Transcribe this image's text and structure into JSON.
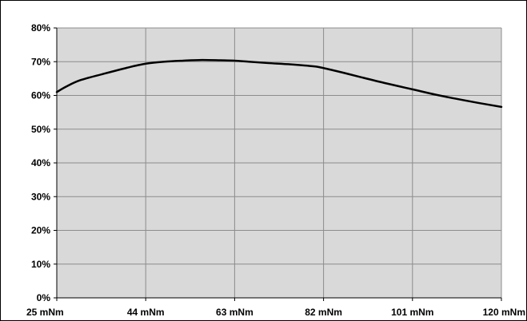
{
  "chart_data": {
    "type": "line",
    "title": "",
    "xlabel": "",
    "ylabel": "",
    "x_ticks": [
      "25 mNm",
      "44 mNm",
      "63 mNm",
      "82 mNm",
      "101 mNm",
      "120 mNm"
    ],
    "x_tick_values": [
      25,
      44,
      63,
      82,
      101,
      120
    ],
    "y_ticks": [
      "0%",
      "10%",
      "20%",
      "30%",
      "40%",
      "50%",
      "60%",
      "70%",
      "80%"
    ],
    "y_tick_values": [
      0,
      10,
      20,
      30,
      40,
      50,
      60,
      70,
      80
    ],
    "xlim": [
      25,
      120
    ],
    "ylim": [
      0,
      80
    ],
    "grid": true,
    "legend": "none",
    "colors": {
      "plot_background": "#d9d9d9",
      "grid": "#8c8c8c",
      "line": "#000000"
    },
    "series": [
      {
        "x": [
          25,
          27,
          30,
          35,
          40,
          44,
          48,
          52,
          56,
          60,
          63,
          66,
          70,
          75,
          80,
          82,
          86,
          90,
          95,
          101,
          106,
          110,
          115,
          120
        ],
        "values": [
          61.0,
          62.6,
          64.5,
          66.4,
          68.2,
          69.4,
          70.0,
          70.3,
          70.5,
          70.4,
          70.3,
          70.0,
          69.6,
          69.2,
          68.6,
          68.1,
          66.8,
          65.4,
          63.7,
          61.8,
          60.2,
          59.1,
          57.8,
          56.6
        ]
      }
    ]
  }
}
